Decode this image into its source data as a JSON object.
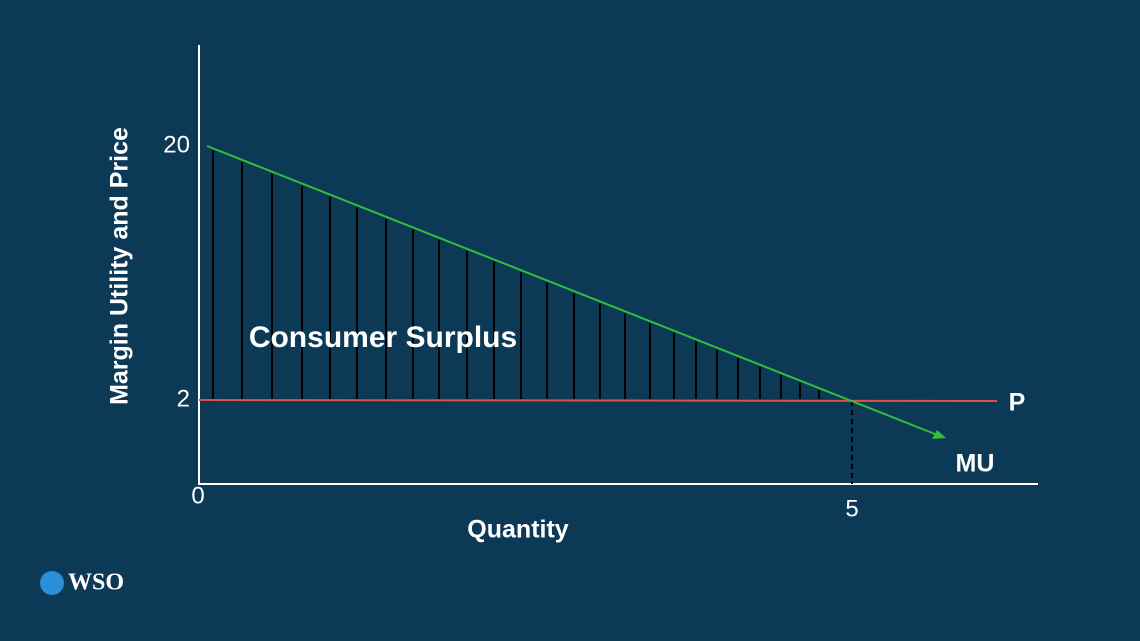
{
  "axes": {
    "y_title": "Margin Utility and Price",
    "x_title": "Quantity",
    "y_labels": [
      "20",
      "2"
    ],
    "origin": "0",
    "x_labels": [
      "5"
    ]
  },
  "annotations": {
    "region": "Consumer Surplus",
    "price_line": "P",
    "mu_line": "MU"
  },
  "logo": "WSO"
}
